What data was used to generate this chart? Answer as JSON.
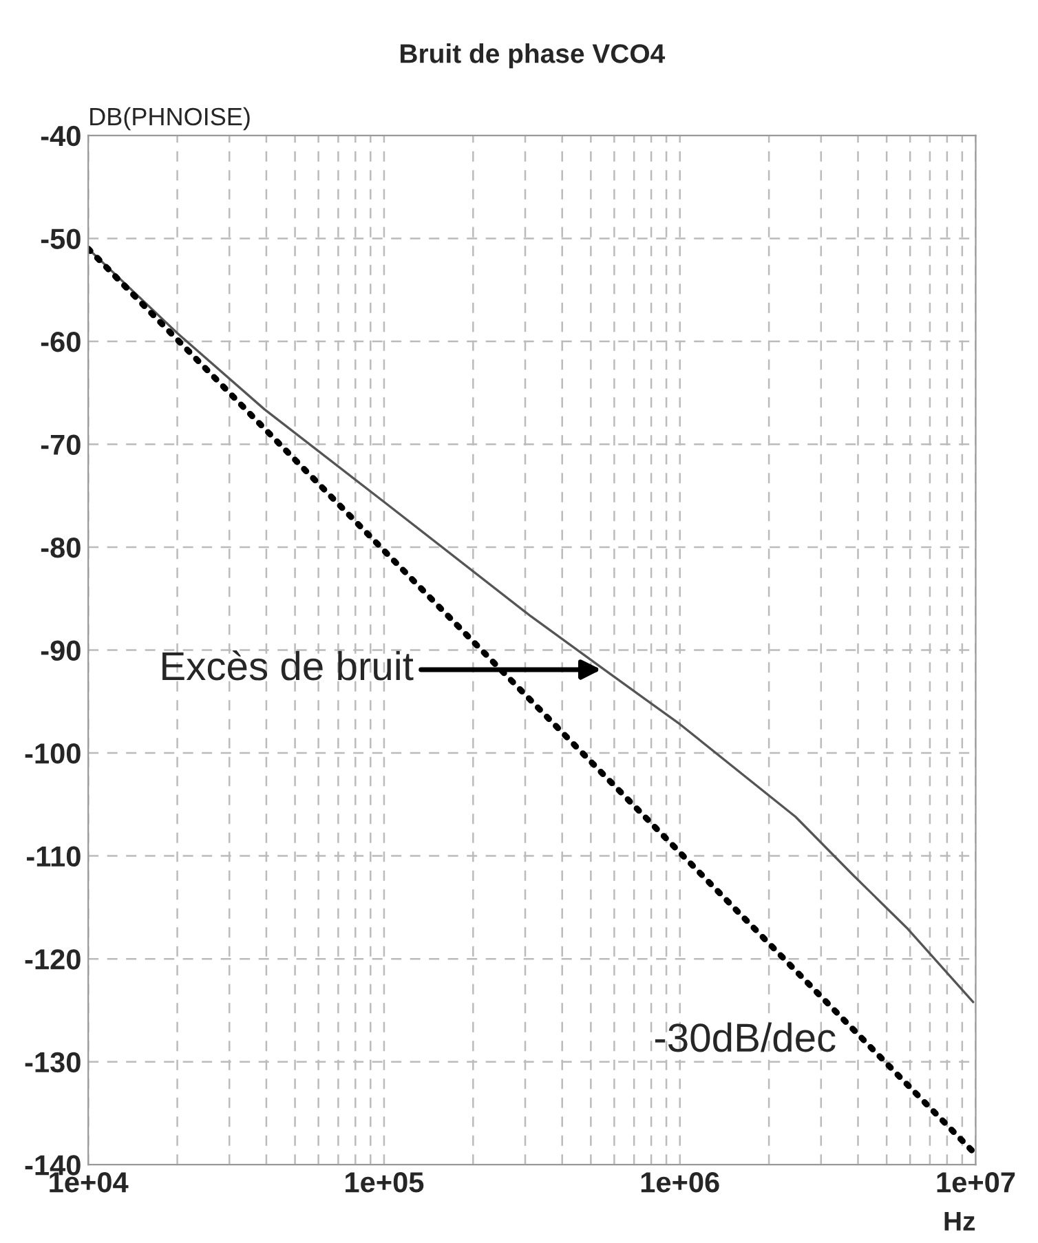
{
  "chart_data": {
    "type": "line",
    "title": "Bruit de phase VCO4",
    "xlabel": "Hz",
    "ylabel": "DB(PHNOISE)",
    "log": "x",
    "grid": true,
    "xlim": [
      10000,
      10000000
    ],
    "xticks": [
      {
        "value": 10000,
        "label": "1e+04"
      },
      {
        "value": 100000,
        "label": "1e+05"
      },
      {
        "value": 1000000,
        "label": "1e+06"
      },
      {
        "value": 10000000,
        "label": "1e+07"
      }
    ],
    "ylim": [
      -140,
      -40
    ],
    "yticks": [
      -140,
      -130,
      -120,
      -110,
      -100,
      -90,
      -80,
      -70,
      -60,
      -50,
      -40
    ],
    "series": [
      {
        "color": "#555555",
        "line_style": "solid",
        "x": [
          10000,
          20000,
          39400,
          100000,
          313000,
          555000,
          1000000,
          2460000,
          3800000,
          5900000,
          9800000
        ],
        "values": [
          -51,
          -59.2,
          -66.6,
          -75.6,
          -86.7,
          -91.9,
          -97.2,
          -106.2,
          -111.7,
          -117.1,
          -124.2
        ]
      },
      {
        "color": "#000000",
        "line_style": "dotted",
        "x": [
          10000,
          10000000
        ],
        "values": [
          -51,
          -139
        ]
      }
    ],
    "annotations": [
      "Excès de bruit",
      "-30dB/dec"
    ]
  }
}
